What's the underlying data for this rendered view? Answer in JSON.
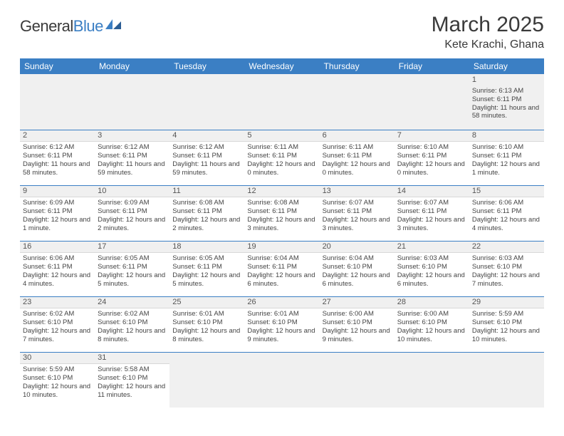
{
  "logo": {
    "text1": "General",
    "text2": "Blue"
  },
  "title": "March 2025",
  "location": "Kete Krachi, Ghana",
  "colors": {
    "header_bg": "#3b7fc4",
    "header_text": "#ffffff"
  },
  "days": [
    "Sunday",
    "Monday",
    "Tuesday",
    "Wednesday",
    "Thursday",
    "Friday",
    "Saturday"
  ],
  "weeks": [
    [
      null,
      null,
      null,
      null,
      null,
      null,
      {
        "n": "1",
        "sr": "6:13 AM",
        "ss": "6:11 PM",
        "dl": "11 hours and 58 minutes."
      }
    ],
    [
      {
        "n": "2",
        "sr": "6:12 AM",
        "ss": "6:11 PM",
        "dl": "11 hours and 58 minutes."
      },
      {
        "n": "3",
        "sr": "6:12 AM",
        "ss": "6:11 PM",
        "dl": "11 hours and 59 minutes."
      },
      {
        "n": "4",
        "sr": "6:12 AM",
        "ss": "6:11 PM",
        "dl": "11 hours and 59 minutes."
      },
      {
        "n": "5",
        "sr": "6:11 AM",
        "ss": "6:11 PM",
        "dl": "12 hours and 0 minutes."
      },
      {
        "n": "6",
        "sr": "6:11 AM",
        "ss": "6:11 PM",
        "dl": "12 hours and 0 minutes."
      },
      {
        "n": "7",
        "sr": "6:10 AM",
        "ss": "6:11 PM",
        "dl": "12 hours and 0 minutes."
      },
      {
        "n": "8",
        "sr": "6:10 AM",
        "ss": "6:11 PM",
        "dl": "12 hours and 1 minute."
      }
    ],
    [
      {
        "n": "9",
        "sr": "6:09 AM",
        "ss": "6:11 PM",
        "dl": "12 hours and 1 minute."
      },
      {
        "n": "10",
        "sr": "6:09 AM",
        "ss": "6:11 PM",
        "dl": "12 hours and 2 minutes."
      },
      {
        "n": "11",
        "sr": "6:08 AM",
        "ss": "6:11 PM",
        "dl": "12 hours and 2 minutes."
      },
      {
        "n": "12",
        "sr": "6:08 AM",
        "ss": "6:11 PM",
        "dl": "12 hours and 3 minutes."
      },
      {
        "n": "13",
        "sr": "6:07 AM",
        "ss": "6:11 PM",
        "dl": "12 hours and 3 minutes."
      },
      {
        "n": "14",
        "sr": "6:07 AM",
        "ss": "6:11 PM",
        "dl": "12 hours and 3 minutes."
      },
      {
        "n": "15",
        "sr": "6:06 AM",
        "ss": "6:11 PM",
        "dl": "12 hours and 4 minutes."
      }
    ],
    [
      {
        "n": "16",
        "sr": "6:06 AM",
        "ss": "6:11 PM",
        "dl": "12 hours and 4 minutes."
      },
      {
        "n": "17",
        "sr": "6:05 AM",
        "ss": "6:11 PM",
        "dl": "12 hours and 5 minutes."
      },
      {
        "n": "18",
        "sr": "6:05 AM",
        "ss": "6:11 PM",
        "dl": "12 hours and 5 minutes."
      },
      {
        "n": "19",
        "sr": "6:04 AM",
        "ss": "6:11 PM",
        "dl": "12 hours and 6 minutes."
      },
      {
        "n": "20",
        "sr": "6:04 AM",
        "ss": "6:10 PM",
        "dl": "12 hours and 6 minutes."
      },
      {
        "n": "21",
        "sr": "6:03 AM",
        "ss": "6:10 PM",
        "dl": "12 hours and 6 minutes."
      },
      {
        "n": "22",
        "sr": "6:03 AM",
        "ss": "6:10 PM",
        "dl": "12 hours and 7 minutes."
      }
    ],
    [
      {
        "n": "23",
        "sr": "6:02 AM",
        "ss": "6:10 PM",
        "dl": "12 hours and 7 minutes."
      },
      {
        "n": "24",
        "sr": "6:02 AM",
        "ss": "6:10 PM",
        "dl": "12 hours and 8 minutes."
      },
      {
        "n": "25",
        "sr": "6:01 AM",
        "ss": "6:10 PM",
        "dl": "12 hours and 8 minutes."
      },
      {
        "n": "26",
        "sr": "6:01 AM",
        "ss": "6:10 PM",
        "dl": "12 hours and 9 minutes."
      },
      {
        "n": "27",
        "sr": "6:00 AM",
        "ss": "6:10 PM",
        "dl": "12 hours and 9 minutes."
      },
      {
        "n": "28",
        "sr": "6:00 AM",
        "ss": "6:10 PM",
        "dl": "12 hours and 10 minutes."
      },
      {
        "n": "29",
        "sr": "5:59 AM",
        "ss": "6:10 PM",
        "dl": "12 hours and 10 minutes."
      }
    ],
    [
      {
        "n": "30",
        "sr": "5:59 AM",
        "ss": "6:10 PM",
        "dl": "12 hours and 10 minutes."
      },
      {
        "n": "31",
        "sr": "5:58 AM",
        "ss": "6:10 PM",
        "dl": "12 hours and 11 minutes."
      },
      null,
      null,
      null,
      null,
      null
    ]
  ],
  "labels": {
    "sunrise": "Sunrise:",
    "sunset": "Sunset:",
    "daylight": "Daylight:"
  }
}
